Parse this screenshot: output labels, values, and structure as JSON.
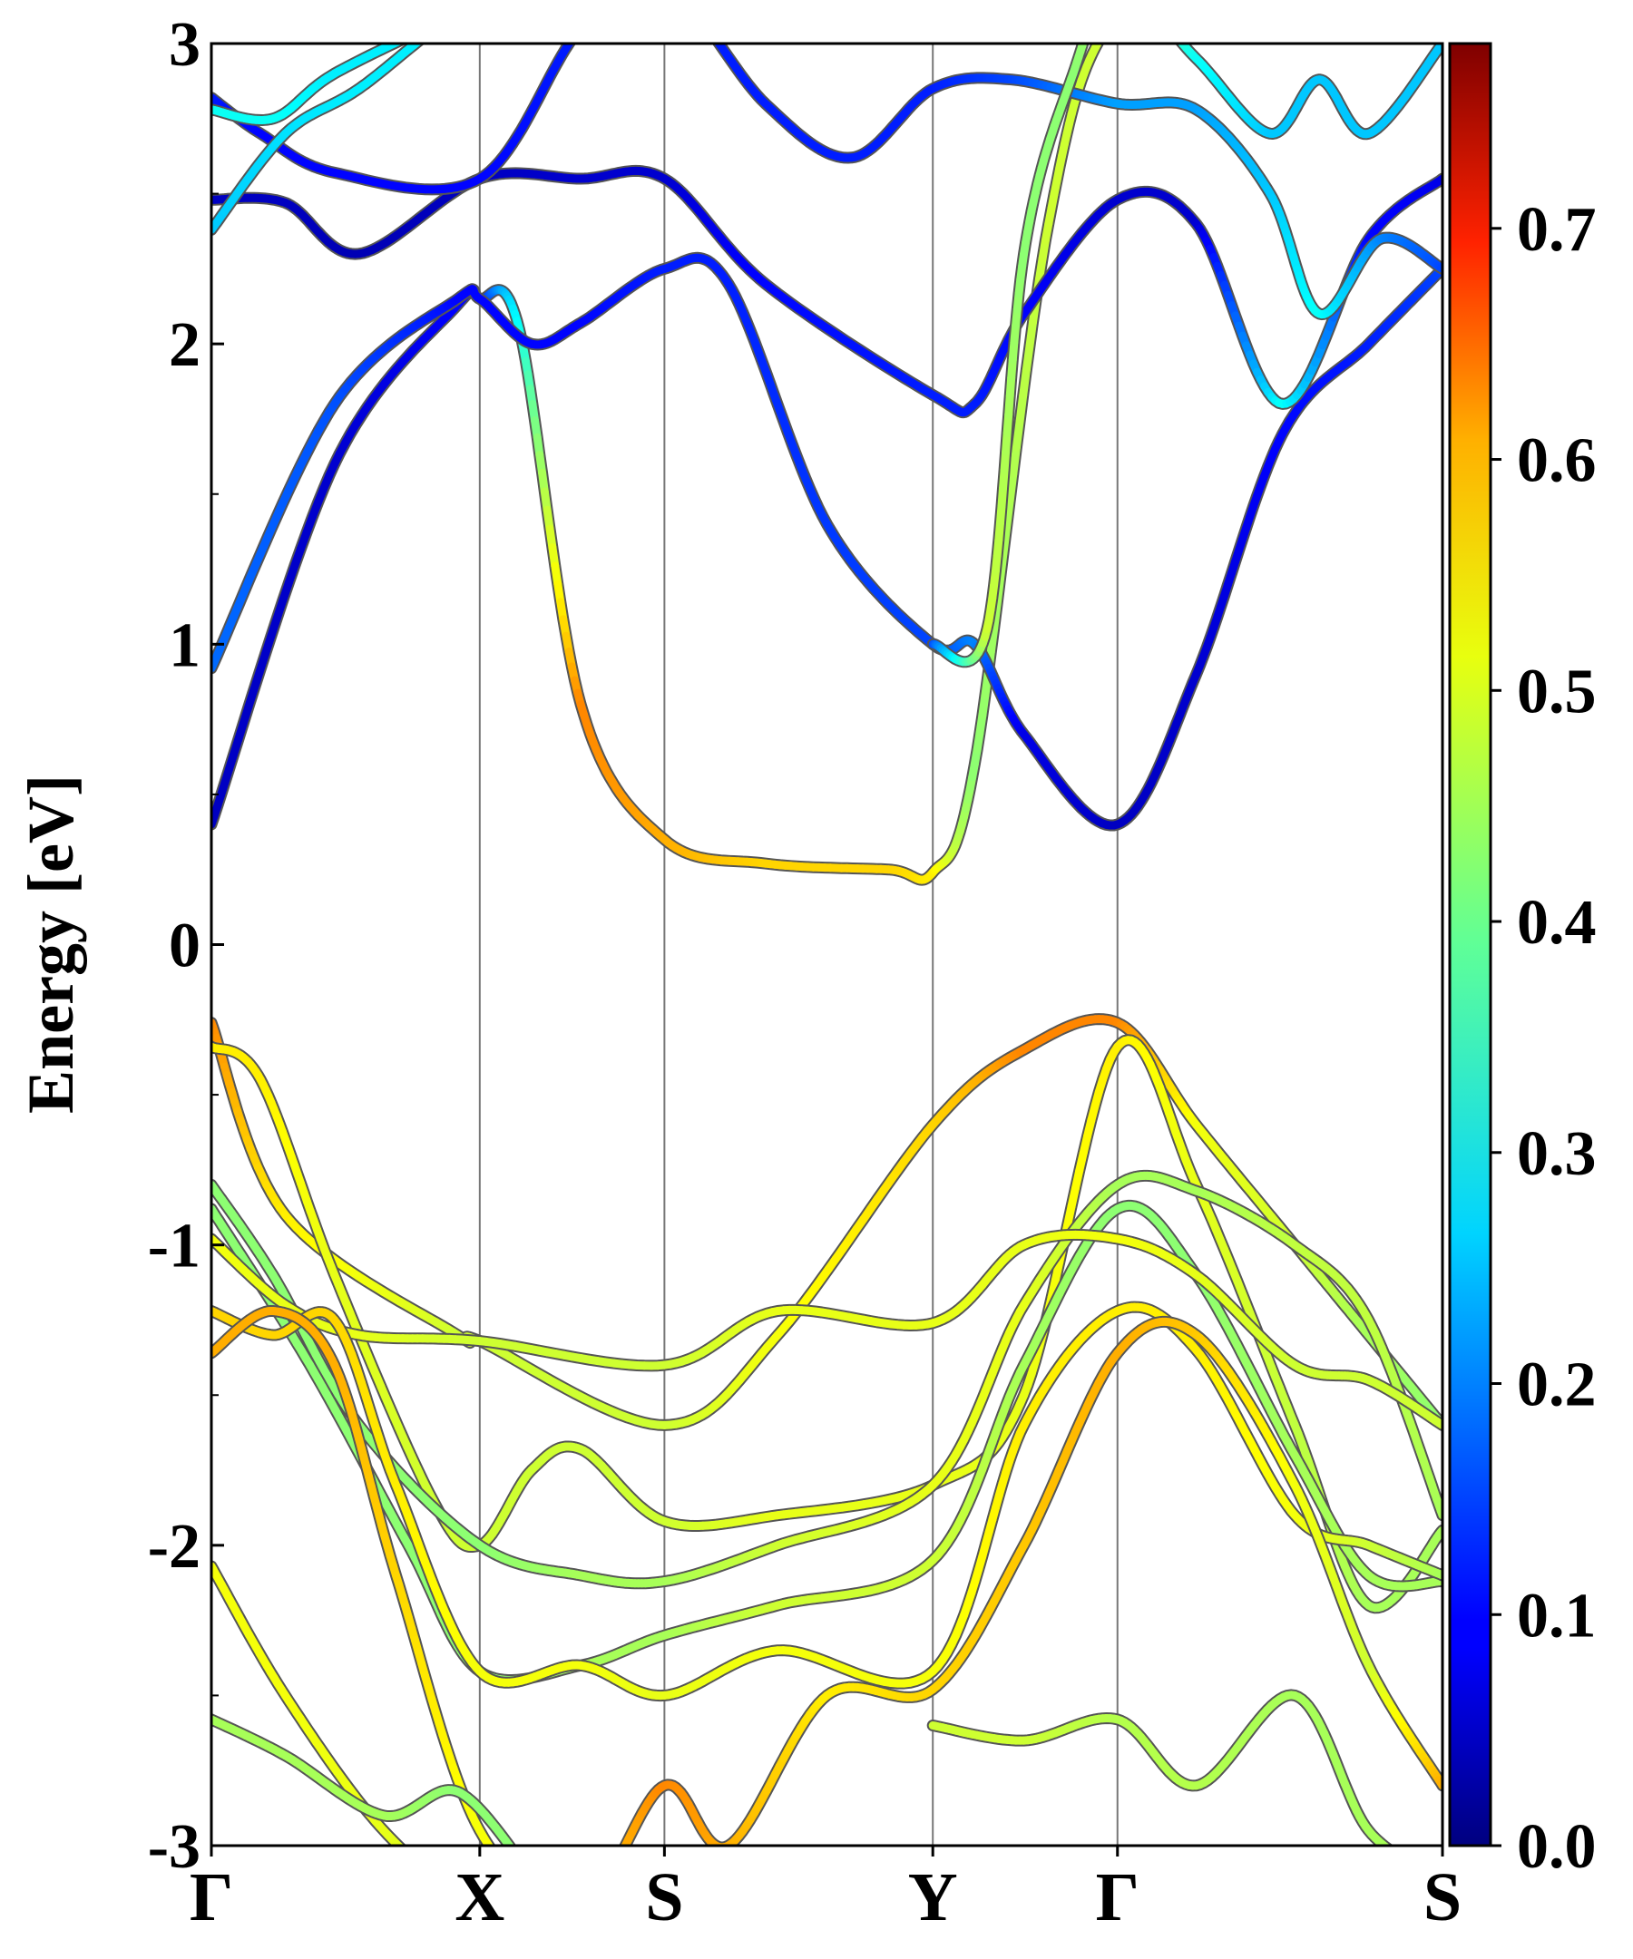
{
  "chart_data": {
    "type": "line",
    "chart_kind": "electronic band structure",
    "ylabel": "Energy [eV]",
    "ylim": [
      -3,
      3
    ],
    "yticks": [
      -3,
      -2,
      -1,
      0,
      1,
      2,
      3
    ],
    "ytick_labels": [
      "-3",
      "-2",
      "-1",
      "0",
      "1",
      "2",
      "3"
    ],
    "kpath_labels": [
      "Γ",
      "X",
      "S",
      "Y",
      "Γ",
      "S"
    ],
    "kpath_positions": [
      0,
      0.218,
      0.368,
      0.586,
      0.736,
      1.0
    ],
    "xlim": [
      0,
      1
    ],
    "grid": false,
    "high_symmetry_lines": true,
    "colorbar": {
      "colormap": "jet",
      "range": [
        0.0,
        0.78
      ],
      "ticks": [
        0.0,
        0.1,
        0.2,
        0.3,
        0.4,
        0.5,
        0.6,
        0.7
      ],
      "tick_labels": [
        "0.0",
        "0.1",
        "0.2",
        "0.3",
        "0.4",
        "0.5",
        "0.6",
        "0.7"
      ],
      "placement": "right"
    },
    "bands": [
      {
        "x": [
          0,
          0.1,
          0.2,
          0.218,
          0.25,
          0.3,
          0.368,
          0.45,
          0.55,
          0.586,
          0.62,
          0.68,
          0.736,
          0.85,
          1.0
        ],
        "y": [
          0.4,
          1.6,
          2.13,
          2.15,
          2.05,
          0.8,
          0.35,
          0.27,
          0.25,
          0.24,
          0.6,
          2.4,
          3.1,
          3.3,
          3.4
        ],
        "weight": [
          0.05,
          0.06,
          0.1,
          0.1,
          0.3,
          0.58,
          0.55,
          0.52,
          0.52,
          0.5,
          0.4,
          0.45,
          0.45,
          0.45,
          0.45
        ]
      },
      {
        "x": [
          0,
          0.1,
          0.2,
          0.218,
          0.26,
          0.3,
          0.368,
          0.42,
          0.5,
          0.586,
          0.62,
          0.66,
          0.736,
          0.8,
          0.87,
          0.94,
          1.0
        ],
        "y": [
          0.92,
          1.8,
          2.15,
          2.15,
          2.0,
          2.07,
          2.25,
          2.2,
          1.4,
          1.0,
          1.0,
          0.7,
          0.4,
          0.9,
          1.7,
          2.0,
          2.25
        ],
        "weight": [
          0.18,
          0.16,
          0.1,
          0.1,
          0.1,
          0.1,
          0.12,
          0.12,
          0.14,
          0.15,
          0.2,
          0.08,
          0.05,
          0.06,
          0.1,
          0.12,
          0.15
        ]
      },
      {
        "x": [
          0,
          0.06,
          0.12,
          0.218,
          0.3,
          0.368,
          0.45,
          0.586,
          0.62,
          0.66,
          0.736,
          0.8,
          0.87,
          0.94,
          1.0
        ],
        "y": [
          2.48,
          2.47,
          2.3,
          2.55,
          2.55,
          2.55,
          2.2,
          1.83,
          1.8,
          2.1,
          2.48,
          2.4,
          1.8,
          2.35,
          2.55
        ],
        "weight": [
          0.05,
          0.05,
          0.04,
          0.05,
          0.06,
          0.06,
          0.1,
          0.12,
          0.12,
          0.1,
          0.06,
          0.06,
          0.3,
          0.1,
          0.08
        ]
      },
      {
        "x": [
          0,
          0.04,
          0.1,
          0.218,
          0.3,
          0.368,
          0.45,
          0.52,
          0.586,
          0.65,
          0.736,
          0.8,
          0.86,
          0.9,
          0.95,
          1.0
        ],
        "y": [
          2.82,
          2.7,
          2.57,
          2.55,
          3.05,
          3.2,
          2.8,
          2.62,
          2.85,
          2.88,
          2.8,
          2.78,
          2.5,
          2.1,
          2.35,
          2.25
        ],
        "weight": [
          0.12,
          0.1,
          0.1,
          0.1,
          0.12,
          0.12,
          0.12,
          0.12,
          0.12,
          0.15,
          0.22,
          0.22,
          0.25,
          0.3,
          0.2,
          0.15
        ]
      },
      {
        "x": [
          0,
          0.06,
          0.12,
          0.2,
          0.3,
          0.368
        ],
        "y": [
          2.38,
          2.7,
          2.85,
          3.1,
          3.3,
          3.4
        ],
        "weight": [
          0.25,
          0.27,
          0.28,
          0.28,
          0.28,
          0.28
        ]
      },
      {
        "x": [
          0,
          0.05,
          0.1,
          0.2
        ],
        "y": [
          2.78,
          2.75,
          2.9,
          3.1
        ],
        "weight": [
          0.3,
          0.3,
          0.28,
          0.28
        ]
      },
      {
        "x": [
          0.586,
          0.63,
          0.66,
          0.7,
          0.736,
          0.8,
          0.86,
          0.9,
          0.94,
          1.0
        ],
        "y": [
          1.0,
          1.05,
          2.3,
          2.9,
          3.2,
          2.95,
          2.7,
          2.88,
          2.7,
          3.0
        ],
        "weight": [
          0.15,
          0.45,
          0.4,
          0.4,
          0.42,
          0.3,
          0.25,
          0.25,
          0.25,
          0.25
        ]
      },
      {
        "x": [
          0,
          0.06,
          0.2,
          0.218,
          0.368,
          0.46,
          0.586,
          0.66,
          0.736,
          0.8,
          0.88,
          0.94,
          1.0
        ],
        "y": [
          -0.26,
          -0.9,
          -1.3,
          -1.32,
          -1.6,
          -1.3,
          -0.6,
          -0.35,
          -0.26,
          -0.6,
          -1.0,
          -1.3,
          -1.6
        ],
        "weight": [
          0.58,
          0.5,
          0.45,
          0.45,
          0.45,
          0.48,
          0.52,
          0.58,
          0.58,
          0.48,
          0.45,
          0.42,
          0.4
        ]
      },
      {
        "x": [
          0,
          0.04,
          0.1,
          0.18,
          0.218,
          0.26,
          0.3,
          0.368,
          0.46,
          0.586,
          0.66,
          0.736,
          0.8,
          0.88,
          0.94,
          1.0
        ],
        "y": [
          -0.34,
          -0.45,
          -1.1,
          -1.85,
          -2.0,
          -1.75,
          -1.68,
          -1.92,
          -1.9,
          -1.8,
          -1.5,
          -0.34,
          -0.8,
          -1.6,
          -2.2,
          -1.95
        ],
        "weight": [
          0.5,
          0.5,
          0.47,
          0.45,
          0.45,
          0.45,
          0.45,
          0.45,
          0.47,
          0.47,
          0.47,
          0.5,
          0.47,
          0.44,
          0.42,
          0.42
        ]
      },
      {
        "x": [
          0,
          0.05,
          0.12,
          0.218,
          0.3,
          0.368,
          0.46,
          0.586,
          0.66,
          0.736,
          0.8,
          0.88,
          0.94,
          1.0
        ],
        "y": [
          -0.8,
          -1.1,
          -1.6,
          -2.0,
          -2.1,
          -2.12,
          -2.0,
          -1.8,
          -1.2,
          -0.8,
          -0.82,
          -1.0,
          -1.25,
          -1.9
        ],
        "weight": [
          0.4,
          0.4,
          0.4,
          0.4,
          0.42,
          0.42,
          0.45,
          0.47,
          0.47,
          0.42,
          0.42,
          0.44,
          0.44,
          0.42
        ]
      },
      {
        "x": [
          0,
          0.08,
          0.16,
          0.218,
          0.3,
          0.368,
          0.46,
          0.586,
          0.66,
          0.736,
          0.8,
          0.88,
          0.94,
          1.0
        ],
        "y": [
          -0.88,
          -1.4,
          -2.0,
          -2.42,
          -2.4,
          -2.3,
          -2.2,
          -2.05,
          -1.4,
          -0.88,
          -1.1,
          -1.7,
          -2.1,
          -2.12
        ],
        "weight": [
          0.4,
          0.4,
          0.4,
          0.4,
          0.42,
          0.42,
          0.45,
          0.45,
          0.42,
          0.4,
          0.4,
          0.42,
          0.42,
          0.42
        ]
      },
      {
        "x": [
          0,
          0.06,
          0.12,
          0.218,
          0.368,
          0.46,
          0.586,
          0.66,
          0.736,
          0.8,
          0.88,
          0.94,
          1.0
        ],
        "y": [
          -0.98,
          -1.2,
          -1.3,
          -1.32,
          -1.4,
          -1.22,
          -1.26,
          -1.0,
          -0.98,
          -1.1,
          -1.4,
          -1.45,
          -1.6
        ],
        "weight": [
          0.48,
          0.47,
          0.47,
          0.45,
          0.45,
          0.47,
          0.47,
          0.47,
          0.48,
          0.47,
          0.45,
          0.45,
          0.45
        ]
      },
      {
        "x": [
          0,
          0.05,
          0.1,
          0.15,
          0.218,
          0.3,
          0.368,
          0.46,
          0.586,
          0.66,
          0.736,
          0.8,
          0.88,
          0.94,
          1.0
        ],
        "y": [
          -1.22,
          -1.3,
          -1.25,
          -1.8,
          -2.42,
          -2.4,
          -2.5,
          -2.35,
          -2.42,
          -1.6,
          -1.22,
          -1.35,
          -1.9,
          -2.0,
          -2.1
        ],
        "weight": [
          0.52,
          0.52,
          0.52,
          0.5,
          0.48,
          0.48,
          0.47,
          0.48,
          0.48,
          0.5,
          0.5,
          0.5,
          0.48,
          0.45,
          0.42
        ]
      },
      {
        "x": [
          0,
          0.05,
          0.1,
          0.15,
          0.218,
          0.3,
          0.368,
          0.42,
          0.5,
          0.586,
          0.66,
          0.736,
          0.8,
          0.88,
          0.94,
          1.0
        ],
        "y": [
          -1.36,
          -1.22,
          -1.4,
          -2.1,
          -2.95,
          -3.2,
          -2.8,
          -3.0,
          -2.5,
          -2.48,
          -2.0,
          -1.36,
          -1.3,
          -1.8,
          -2.4,
          -2.8
        ],
        "weight": [
          0.55,
          0.55,
          0.55,
          0.52,
          0.48,
          0.52,
          0.58,
          0.55,
          0.5,
          0.52,
          0.53,
          0.55,
          0.53,
          0.48,
          0.45,
          0.55
        ]
      },
      {
        "x": [
          0,
          0.06,
          0.14,
          0.218,
          0.3
        ],
        "y": [
          -2.07,
          -2.5,
          -2.95,
          -3.2,
          -3.3
        ],
        "weight": [
          0.48,
          0.48,
          0.47,
          0.45,
          0.45
        ]
      },
      {
        "x": [
          0,
          0.06,
          0.14,
          0.2,
          0.26
        ],
        "y": [
          -2.58,
          -2.7,
          -2.9,
          -2.82,
          -3.1
        ],
        "weight": [
          0.42,
          0.42,
          0.42,
          0.4,
          0.4
        ]
      },
      {
        "x": [
          0.586,
          0.66,
          0.736,
          0.8,
          0.88,
          0.94,
          1.0
        ],
        "y": [
          -2.6,
          -2.65,
          -2.58,
          -2.8,
          -2.5,
          -2.95,
          -3.1
        ],
        "weight": [
          0.45,
          0.45,
          0.43,
          0.43,
          0.42,
          0.42,
          0.42
        ]
      }
    ]
  }
}
